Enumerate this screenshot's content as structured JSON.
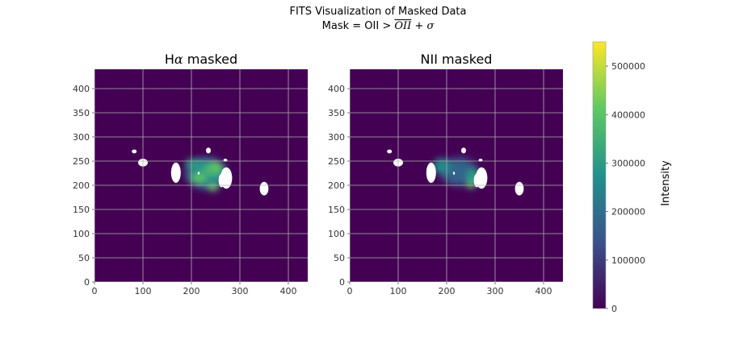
{
  "figure": {
    "suptitle_line1": "FITS Visualization of Masked Data",
    "suptitle_line2_prefix": "Mask = OII >",
    "suptitle_line2_bar": "OII",
    "suptitle_line2_suffix": "+",
    "suptitle_line2_sigma": "σ"
  },
  "colors": {
    "background_plot": "#440154",
    "mask": "#ffffff",
    "grid": "#b0b0b0",
    "colormap": [
      "#440154",
      "#3b528b",
      "#21918c",
      "#5ec962",
      "#fde725"
    ]
  },
  "chart_data": [
    {
      "type": "heatmap",
      "title_prefix": "H",
      "title_greek": "α",
      "title_suffix": " masked",
      "xlim": [
        0,
        440
      ],
      "ylim": [
        0,
        440
      ],
      "xticks": [
        0,
        100,
        200,
        300,
        400
      ],
      "yticks": [
        0,
        50,
        100,
        150,
        200,
        250,
        300,
        350,
        400
      ],
      "grid": true,
      "colorbar_range": [
        0,
        550000
      ],
      "emission": [
        {
          "x": 230,
          "y": 225,
          "rx": 45,
          "ry": 35,
          "value": 120000
        },
        {
          "x": 232,
          "y": 225,
          "rx": 34,
          "ry": 26,
          "value": 260000
        },
        {
          "x": 245,
          "y": 232,
          "rx": 22,
          "ry": 14,
          "value": 360000
        },
        {
          "x": 215,
          "y": 215,
          "rx": 16,
          "ry": 11,
          "value": 390000
        },
        {
          "x": 250,
          "y": 240,
          "rx": 10,
          "ry": 7,
          "value": 430000
        },
        {
          "x": 245,
          "y": 195,
          "rx": 10,
          "ry": 7,
          "value": 420000
        },
        {
          "x": 205,
          "y": 245,
          "rx": 18,
          "ry": 10,
          "value": 300000
        }
      ],
      "masked_regions": [
        {
          "x": 168,
          "y": 226,
          "rx": 10,
          "ry": 21
        },
        {
          "x": 272,
          "y": 215,
          "rx": 12,
          "ry": 22
        },
        {
          "x": 100,
          "y": 247,
          "rx": 10,
          "ry": 8
        },
        {
          "x": 350,
          "y": 193,
          "rx": 9,
          "ry": 14
        },
        {
          "x": 82,
          "y": 270,
          "rx": 5,
          "ry": 4
        },
        {
          "x": 235,
          "y": 272,
          "rx": 5,
          "ry": 6
        },
        {
          "x": 262,
          "y": 210,
          "rx": 6,
          "ry": 14
        },
        {
          "x": 270,
          "y": 252,
          "rx": 4,
          "ry": 3
        },
        {
          "x": 215,
          "y": 225,
          "rx": 2,
          "ry": 3
        }
      ]
    },
    {
      "type": "heatmap",
      "title": "NII masked",
      "xlim": [
        0,
        440
      ],
      "ylim": [
        0,
        440
      ],
      "xticks": [
        0,
        100,
        200,
        300,
        400
      ],
      "yticks": [
        0,
        50,
        100,
        150,
        200,
        250,
        300,
        350,
        400
      ],
      "grid": true,
      "colorbar_range": [
        0,
        550000
      ],
      "emission": [
        {
          "x": 225,
          "y": 228,
          "rx": 42,
          "ry": 32,
          "value": 100000
        },
        {
          "x": 225,
          "y": 228,
          "rx": 30,
          "ry": 22,
          "value": 180000
        },
        {
          "x": 190,
          "y": 240,
          "rx": 18,
          "ry": 16,
          "value": 260000
        },
        {
          "x": 255,
          "y": 215,
          "rx": 14,
          "ry": 18,
          "value": 300000
        },
        {
          "x": 250,
          "y": 200,
          "rx": 6,
          "ry": 8,
          "value": 420000
        }
      ],
      "masked_regions": [
        {
          "x": 168,
          "y": 226,
          "rx": 10,
          "ry": 21
        },
        {
          "x": 272,
          "y": 215,
          "rx": 12,
          "ry": 22
        },
        {
          "x": 100,
          "y": 247,
          "rx": 10,
          "ry": 8
        },
        {
          "x": 350,
          "y": 193,
          "rx": 9,
          "ry": 14
        },
        {
          "x": 82,
          "y": 270,
          "rx": 5,
          "ry": 4
        },
        {
          "x": 235,
          "y": 272,
          "rx": 5,
          "ry": 6
        },
        {
          "x": 262,
          "y": 210,
          "rx": 6,
          "ry": 14
        },
        {
          "x": 270,
          "y": 252,
          "rx": 4,
          "ry": 3
        },
        {
          "x": 215,
          "y": 225,
          "rx": 2,
          "ry": 3
        }
      ]
    }
  ],
  "colorbar": {
    "label": "Intensity",
    "min": 0,
    "max": 550000,
    "ticks": [
      0,
      100000,
      200000,
      300000,
      400000,
      500000
    ],
    "tick_labels": [
      "0",
      "100000",
      "200000",
      "300000",
      "400000",
      "500000"
    ]
  }
}
